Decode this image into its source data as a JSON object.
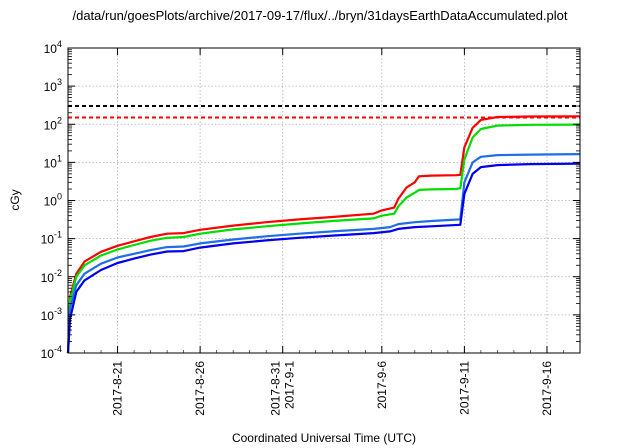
{
  "chart_data": {
    "type": "line",
    "title": "/data/run/goesPlots/archive/2017-09-17/flux/../bryn/31daysEarthDataAccumulated.plot",
    "xlabel": "Coordinated Universal Time (UTC)",
    "ylabel": "cGy",
    "y_scale": "log",
    "ylim": [
      0.0001,
      10000
    ],
    "xlim": [
      "2017-08-18",
      "2017-09-18"
    ],
    "grid": true,
    "x_ticks": [
      {
        "date": "2017-08-21",
        "lines": [
          "2017-8-21"
        ]
      },
      {
        "date": "2017-08-26",
        "lines": [
          "2017-8-26"
        ]
      },
      {
        "date": "2017-08-31",
        "lines": [
          "2017-8-31",
          "2017-9-1"
        ]
      },
      {
        "date": "2017-09-06",
        "lines": [
          "2017-9-6"
        ]
      },
      {
        "date": "2017-09-11",
        "lines": [
          "2017-9-11"
        ]
      },
      {
        "date": "2017-09-16",
        "lines": [
          "2017-9-16"
        ]
      }
    ],
    "y_ticks": [
      {
        "value": 0.0001,
        "mantissa": "10",
        "exp": "-4"
      },
      {
        "value": 0.001,
        "mantissa": "10",
        "exp": "-3"
      },
      {
        "value": 0.01,
        "mantissa": "10",
        "exp": "-2"
      },
      {
        "value": 0.1,
        "mantissa": "10",
        "exp": "-1"
      },
      {
        "value": 1,
        "mantissa": "10",
        "exp": "0"
      },
      {
        "value": 10,
        "mantissa": "10",
        "exp": "1"
      },
      {
        "value": 100,
        "mantissa": "10",
        "exp": "2"
      },
      {
        "value": 1000,
        "mantissa": "10",
        "exp": "3"
      },
      {
        "value": 10000,
        "mantissa": "10",
        "exp": "4"
      }
    ],
    "thresholds": [
      {
        "value": 300,
        "color": "#000000"
      },
      {
        "value": 150,
        "color": "#ff0000"
      }
    ],
    "series": [
      {
        "color": "#ff0000",
        "points": [
          [
            "2017-08-18T00:00",
            0.0001
          ],
          [
            "2017-08-18T03:00",
            0.003
          ],
          [
            "2017-08-18T12:00",
            0.012
          ],
          [
            "2017-08-19T00:00",
            0.025
          ],
          [
            "2017-08-20T00:00",
            0.045
          ],
          [
            "2017-08-21T00:00",
            0.065
          ],
          [
            "2017-08-22T00:00",
            0.085
          ],
          [
            "2017-08-23T00:00",
            0.11
          ],
          [
            "2017-08-24T00:00",
            0.135
          ],
          [
            "2017-08-25T00:00",
            0.14
          ],
          [
            "2017-08-26T00:00",
            0.17
          ],
          [
            "2017-08-28T00:00",
            0.22
          ],
          [
            "2017-08-30T00:00",
            0.27
          ],
          [
            "2017-09-01T00:00",
            0.32
          ],
          [
            "2017-09-03T00:00",
            0.37
          ],
          [
            "2017-09-05T12:00",
            0.45
          ],
          [
            "2017-09-06T00:00",
            0.55
          ],
          [
            "2017-09-06T18:00",
            0.65
          ],
          [
            "2017-09-07T00:00",
            1.1
          ],
          [
            "2017-09-07T12:00",
            2.2
          ],
          [
            "2017-09-08T00:00",
            3.0
          ],
          [
            "2017-09-08T06:00",
            4.3
          ],
          [
            "2017-09-09T00:00",
            4.5
          ],
          [
            "2017-09-10T12:00",
            4.6
          ],
          [
            "2017-09-10T18:00",
            4.7
          ],
          [
            "2017-09-11T00:00",
            25
          ],
          [
            "2017-09-11T12:00",
            80
          ],
          [
            "2017-09-12T00:00",
            130
          ],
          [
            "2017-09-13T00:00",
            155
          ],
          [
            "2017-09-15T00:00",
            160
          ],
          [
            "2017-09-18T00:00",
            162
          ]
        ]
      },
      {
        "color": "#00dd00",
        "points": [
          [
            "2017-08-18T00:00",
            0.0001
          ],
          [
            "2017-08-18T03:00",
            0.0025
          ],
          [
            "2017-08-18T12:00",
            0.01
          ],
          [
            "2017-08-19T00:00",
            0.02
          ],
          [
            "2017-08-20T00:00",
            0.036
          ],
          [
            "2017-08-21T00:00",
            0.052
          ],
          [
            "2017-08-22T00:00",
            0.068
          ],
          [
            "2017-08-23T00:00",
            0.088
          ],
          [
            "2017-08-24T00:00",
            0.105
          ],
          [
            "2017-08-25T00:00",
            0.11
          ],
          [
            "2017-08-26T00:00",
            0.135
          ],
          [
            "2017-08-28T00:00",
            0.175
          ],
          [
            "2017-08-30T00:00",
            0.21
          ],
          [
            "2017-09-01T00:00",
            0.25
          ],
          [
            "2017-09-03T00:00",
            0.29
          ],
          [
            "2017-09-05T12:00",
            0.34
          ],
          [
            "2017-09-06T00:00",
            0.4
          ],
          [
            "2017-09-06T18:00",
            0.45
          ],
          [
            "2017-09-07T00:00",
            0.7
          ],
          [
            "2017-09-07T12:00",
            1.2
          ],
          [
            "2017-09-08T00:00",
            1.6
          ],
          [
            "2017-09-08T06:00",
            1.9
          ],
          [
            "2017-09-09T00:00",
            1.95
          ],
          [
            "2017-09-10T12:00",
            2.0
          ],
          [
            "2017-09-10T18:00",
            2.1
          ],
          [
            "2017-09-11T00:00",
            12
          ],
          [
            "2017-09-11T12:00",
            45
          ],
          [
            "2017-09-12T00:00",
            75
          ],
          [
            "2017-09-13T00:00",
            92
          ],
          [
            "2017-09-15T00:00",
            97
          ],
          [
            "2017-09-18T00:00",
            98
          ]
        ]
      },
      {
        "color": "#1e6ee6",
        "points": [
          [
            "2017-08-18T00:00",
            0.0001
          ],
          [
            "2017-08-18T03:00",
            0.0015
          ],
          [
            "2017-08-18T12:00",
            0.006
          ],
          [
            "2017-08-19T00:00",
            0.012
          ],
          [
            "2017-08-20T00:00",
            0.022
          ],
          [
            "2017-08-21T00:00",
            0.032
          ],
          [
            "2017-08-22T00:00",
            0.04
          ],
          [
            "2017-08-23T00:00",
            0.05
          ],
          [
            "2017-08-24T00:00",
            0.06
          ],
          [
            "2017-08-25T00:00",
            0.062
          ],
          [
            "2017-08-26T00:00",
            0.075
          ],
          [
            "2017-08-28T00:00",
            0.095
          ],
          [
            "2017-08-30T00:00",
            0.115
          ],
          [
            "2017-09-01T00:00",
            0.135
          ],
          [
            "2017-09-03T00:00",
            0.155
          ],
          [
            "2017-09-05T12:00",
            0.18
          ],
          [
            "2017-09-06T12:00",
            0.2
          ],
          [
            "2017-09-07T00:00",
            0.24
          ],
          [
            "2017-09-08T00:00",
            0.27
          ],
          [
            "2017-09-09T00:00",
            0.29
          ],
          [
            "2017-09-10T18:00",
            0.32
          ],
          [
            "2017-09-11T00:00",
            3
          ],
          [
            "2017-09-11T12:00",
            10
          ],
          [
            "2017-09-12T00:00",
            14
          ],
          [
            "2017-09-13T00:00",
            15.5
          ],
          [
            "2017-09-15T00:00",
            16
          ],
          [
            "2017-09-18T00:00",
            16.5
          ]
        ]
      },
      {
        "color": "#0000ee",
        "points": [
          [
            "2017-08-18T00:00",
            0.0001
          ],
          [
            "2017-08-18T03:00",
            0.0008
          ],
          [
            "2017-08-18T12:00",
            0.004
          ],
          [
            "2017-08-19T00:00",
            0.008
          ],
          [
            "2017-08-20T00:00",
            0.015
          ],
          [
            "2017-08-21T00:00",
            0.023
          ],
          [
            "2017-08-22T00:00",
            0.03
          ],
          [
            "2017-08-23T00:00",
            0.038
          ],
          [
            "2017-08-24T00:00",
            0.046
          ],
          [
            "2017-08-25T00:00",
            0.047
          ],
          [
            "2017-08-26T00:00",
            0.058
          ],
          [
            "2017-08-28T00:00",
            0.075
          ],
          [
            "2017-08-30T00:00",
            0.09
          ],
          [
            "2017-09-01T00:00",
            0.105
          ],
          [
            "2017-09-03T00:00",
            0.12
          ],
          [
            "2017-09-05T12:00",
            0.14
          ],
          [
            "2017-09-06T12:00",
            0.155
          ],
          [
            "2017-09-07T00:00",
            0.18
          ],
          [
            "2017-09-08T00:00",
            0.2
          ],
          [
            "2017-09-09T00:00",
            0.21
          ],
          [
            "2017-09-10T18:00",
            0.23
          ],
          [
            "2017-09-11T00:00",
            1.5
          ],
          [
            "2017-09-11T12:00",
            5
          ],
          [
            "2017-09-12T00:00",
            7.5
          ],
          [
            "2017-09-13T00:00",
            8.5
          ],
          [
            "2017-09-15T00:00",
            9
          ],
          [
            "2017-09-18T00:00",
            9.3
          ]
        ]
      }
    ]
  }
}
